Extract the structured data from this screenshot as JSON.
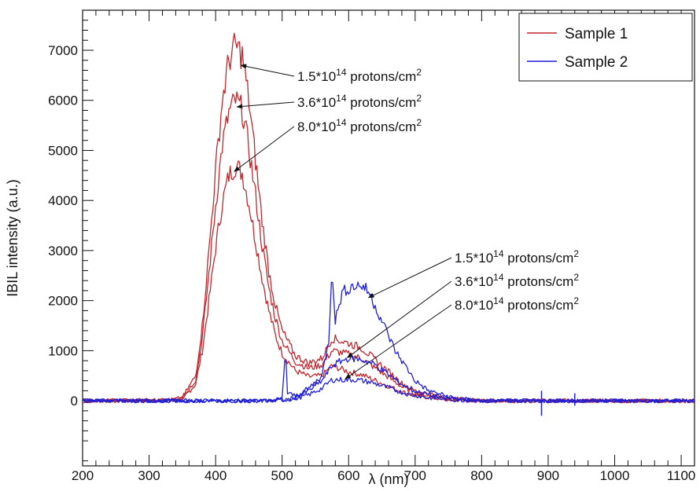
{
  "chart_data": {
    "type": "line",
    "xlabel": "λ (nm)",
    "ylabel": "IBIL intensity (a.u.)",
    "xlim": [
      200,
      1120
    ],
    "ylim": [
      -1300,
      7800
    ],
    "x_ticks": [
      200,
      300,
      400,
      500,
      600,
      700,
      800,
      900,
      1000,
      1100
    ],
    "y_ticks": [
      0,
      1000,
      2000,
      3000,
      4000,
      5000,
      6000,
      7000
    ],
    "legend_position": "top-right",
    "legend": [
      {
        "label": "Sample 1",
        "color": "#c0272d"
      },
      {
        "label": "Sample 2",
        "color": "#1f1fd6"
      }
    ],
    "series": [
      {
        "sample": "Sample 1",
        "fluence": "1.5*10^14 protons/cm^2",
        "color": "#c0272d",
        "points": [
          [
            200,
            0
          ],
          [
            330,
            10
          ],
          [
            350,
            60
          ],
          [
            370,
            500
          ],
          [
            380,
            1500
          ],
          [
            390,
            3000
          ],
          [
            400,
            4600
          ],
          [
            410,
            6000
          ],
          [
            420,
            6800
          ],
          [
            430,
            7100
          ],
          [
            440,
            6900
          ],
          [
            450,
            6000
          ],
          [
            460,
            4800
          ],
          [
            470,
            3600
          ],
          [
            480,
            2600
          ],
          [
            490,
            1900
          ],
          [
            500,
            1400
          ],
          [
            520,
            900
          ],
          [
            540,
            750
          ],
          [
            560,
            850
          ],
          [
            575,
            1250
          ],
          [
            600,
            1150
          ],
          [
            620,
            1050
          ],
          [
            650,
            700
          ],
          [
            680,
            350
          ],
          [
            700,
            200
          ],
          [
            750,
            50
          ],
          [
            800,
            0
          ],
          [
            1120,
            0
          ]
        ]
      },
      {
        "sample": "Sample 1",
        "fluence": "3.6*10^14 protons/cm^2",
        "color": "#c0272d",
        "points": [
          [
            200,
            0
          ],
          [
            330,
            10
          ],
          [
            350,
            50
          ],
          [
            370,
            420
          ],
          [
            380,
            1250
          ],
          [
            390,
            2550
          ],
          [
            400,
            3900
          ],
          [
            410,
            5100
          ],
          [
            420,
            5750
          ],
          [
            430,
            6000
          ],
          [
            440,
            5800
          ],
          [
            450,
            5050
          ],
          [
            460,
            4100
          ],
          [
            470,
            3100
          ],
          [
            480,
            2250
          ],
          [
            490,
            1650
          ],
          [
            500,
            1200
          ],
          [
            520,
            780
          ],
          [
            540,
            650
          ],
          [
            560,
            720
          ],
          [
            575,
            1000
          ],
          [
            600,
            930
          ],
          [
            620,
            840
          ],
          [
            650,
            560
          ],
          [
            680,
            280
          ],
          [
            700,
            150
          ],
          [
            750,
            40
          ],
          [
            800,
            0
          ],
          [
            1120,
            0
          ]
        ]
      },
      {
        "sample": "Sample 1",
        "fluence": "8.0*10^14 protons/cm^2",
        "color": "#c0272d",
        "points": [
          [
            200,
            0
          ],
          [
            330,
            10
          ],
          [
            350,
            40
          ],
          [
            370,
            330
          ],
          [
            380,
            1000
          ],
          [
            390,
            2000
          ],
          [
            400,
            3050
          ],
          [
            410,
            3950
          ],
          [
            420,
            4500
          ],
          [
            430,
            4700
          ],
          [
            440,
            4550
          ],
          [
            450,
            3950
          ],
          [
            460,
            3200
          ],
          [
            470,
            2450
          ],
          [
            480,
            1800
          ],
          [
            490,
            1300
          ],
          [
            500,
            950
          ],
          [
            520,
            600
          ],
          [
            540,
            480
          ],
          [
            560,
            500
          ],
          [
            575,
            700
          ],
          [
            600,
            580
          ],
          [
            620,
            520
          ],
          [
            650,
            350
          ],
          [
            680,
            180
          ],
          [
            700,
            100
          ],
          [
            750,
            20
          ],
          [
            800,
            0
          ],
          [
            1120,
            0
          ]
        ]
      },
      {
        "sample": "Sample 2",
        "fluence": "1.5*10^14 protons/cm^2",
        "color": "#1f1fd6",
        "points": [
          [
            200,
            0
          ],
          [
            480,
            0
          ],
          [
            500,
            40
          ],
          [
            505,
            1050
          ],
          [
            508,
            150
          ],
          [
            520,
            100
          ],
          [
            540,
            250
          ],
          [
            560,
            500
          ],
          [
            570,
            1200
          ],
          [
            575,
            2700
          ],
          [
            580,
            1600
          ],
          [
            590,
            2150
          ],
          [
            600,
            2250
          ],
          [
            610,
            2300
          ],
          [
            620,
            2300
          ],
          [
            630,
            2180
          ],
          [
            650,
            1600
          ],
          [
            670,
            1000
          ],
          [
            700,
            400
          ],
          [
            720,
            200
          ],
          [
            760,
            50
          ],
          [
            800,
            0
          ],
          [
            1120,
            0
          ]
        ]
      },
      {
        "sample": "Sample 2",
        "fluence": "3.6*10^14 protons/cm^2",
        "color": "#1f1fd6",
        "points": [
          [
            200,
            0
          ],
          [
            480,
            0
          ],
          [
            505,
            20
          ],
          [
            520,
            60
          ],
          [
            540,
            200
          ],
          [
            560,
            400
          ],
          [
            575,
            700
          ],
          [
            590,
            800
          ],
          [
            600,
            850
          ],
          [
            620,
            820
          ],
          [
            640,
            720
          ],
          [
            660,
            520
          ],
          [
            680,
            330
          ],
          [
            700,
            190
          ],
          [
            740,
            60
          ],
          [
            800,
            0
          ],
          [
            1120,
            0
          ]
        ]
      },
      {
        "sample": "Sample 2",
        "fluence": "8.0*10^14 protons/cm^2",
        "color": "#1f1fd6",
        "points": [
          [
            200,
            0
          ],
          [
            480,
            0
          ],
          [
            505,
            15
          ],
          [
            520,
            40
          ],
          [
            540,
            120
          ],
          [
            560,
            250
          ],
          [
            575,
            420
          ],
          [
            590,
            420
          ],
          [
            610,
            420
          ],
          [
            630,
            380
          ],
          [
            650,
            300
          ],
          [
            670,
            210
          ],
          [
            690,
            130
          ],
          [
            720,
            60
          ],
          [
            760,
            15
          ],
          [
            800,
            0
          ],
          [
            1120,
            0
          ]
        ]
      }
    ],
    "artifacts": [
      {
        "x": 890,
        "low": -300,
        "high": 200,
        "color": "#1f1fd6"
      },
      {
        "x": 940,
        "low": -100,
        "high": 150,
        "color": "#1f1fd6"
      }
    ],
    "annotations": [
      {
        "base": "1.5*10",
        "exp": "14",
        "mid": " protons/cm",
        "exp2": "2",
        "pointer": [
          438,
          6700
        ],
        "label_x": 378,
        "label_y": 103
      },
      {
        "base": "3.6*10",
        "exp": "14",
        "mid": " protons/cm",
        "exp2": "2",
        "pointer": [
          432,
          5870
        ],
        "label_x": 378,
        "label_y": 136
      },
      {
        "base": "8.0*10",
        "exp": "14",
        "mid": " protons/cm",
        "exp2": "2",
        "pointer": [
          428,
          4580
        ],
        "label_x": 378,
        "label_y": 167
      },
      {
        "base": "1.5*10",
        "exp": "14",
        "mid": " protons/cm",
        "exp2": "2",
        "pointer": [
          630,
          2060
        ],
        "label_x": 578,
        "label_y": 334
      },
      {
        "base": "3.6*10",
        "exp": "14",
        "mid": " protons/cm",
        "exp2": "2",
        "pointer": [
          598,
          860
        ],
        "label_x": 578,
        "label_y": 364
      },
      {
        "base": "8.0*10",
        "exp": "14",
        "mid": " protons/cm",
        "exp2": "2",
        "pointer": [
          595,
          440
        ],
        "label_x": 578,
        "label_y": 394
      }
    ]
  }
}
